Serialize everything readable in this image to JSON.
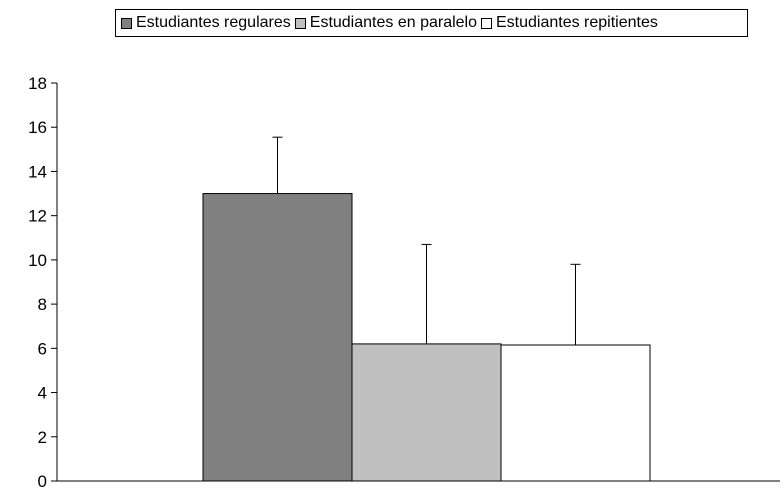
{
  "chart_data": {
    "type": "bar",
    "title": "",
    "xlabel": "",
    "ylabel": "",
    "ylim": [
      0,
      18
    ],
    "yticks": [
      0,
      2,
      4,
      6,
      8,
      10,
      12,
      14,
      16,
      18
    ],
    "grid": false,
    "legend_position": "top",
    "series": [
      {
        "name": "Estudiantes regulares",
        "value": 13.0,
        "error": 2.55,
        "color": "#808080"
      },
      {
        "name": "Estudiantes en paralelo",
        "value": 6.2,
        "error": 4.5,
        "color": "#c0c0c0"
      },
      {
        "name": "Estudiantes repitientes",
        "value": 6.15,
        "error": 3.65,
        "color": "#ffffff"
      }
    ]
  }
}
